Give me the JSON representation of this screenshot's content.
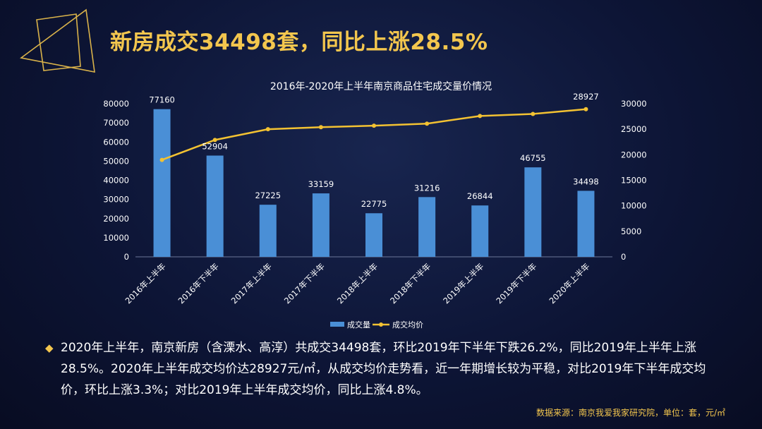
{
  "headline": "新房成交34498套，同比上涨28.5%",
  "summary": "2020年上半年，南京新房（含溧水、高淳）共成交34498套，环比2019年下半年下跌26.2%，同比2019年上半年上涨28.5%。2020年上半年成交均价达28927元/㎡，从成交均价走势看，近一年期增长较为平稳，对比2019年下半年成交均价，环比上涨3.3%；对比2019年上半年成交均价，同比上涨4.8%。",
  "source": "数据来源：南京我爱我家研究院，单位：套，元/㎡",
  "colors": {
    "bar": "#4a8fd6",
    "line": "#f3c232",
    "accent": "#f3c64e"
  },
  "chart_data": {
    "type": "bar",
    "title": "2016年-2020年上半年南京商品住宅成交量价情况",
    "categories": [
      "2016年上半年",
      "2016年下半年",
      "2017年上半年",
      "2017年下半年",
      "2018年上半年",
      "2018年下半年",
      "2019年上半年",
      "2019年下半年",
      "2020年上半年"
    ],
    "series": [
      {
        "name": "成交量",
        "type": "bar",
        "axis": "left",
        "values": [
          77160,
          52904,
          27225,
          33159,
          22775,
          31216,
          26844,
          46755,
          34498
        ],
        "data_labels": [
          "77160",
          "52904",
          "27225",
          "33159",
          "22775",
          "31216",
          "26844",
          "46755",
          "34498"
        ]
      },
      {
        "name": "成交均价",
        "type": "line",
        "axis": "right",
        "values": [
          19000,
          22900,
          25000,
          25400,
          25700,
          26100,
          27600,
          28000,
          28927
        ],
        "labeled_point": {
          "index": 8,
          "label": "28927"
        }
      }
    ],
    "y_left": {
      "min": 0,
      "max": 80000,
      "ticks": [
        "0",
        "10000",
        "20000",
        "30000",
        "40000",
        "50000",
        "60000",
        "70000",
        "80000"
      ]
    },
    "y_right": {
      "min": 0,
      "max": 30000,
      "ticks": [
        "0",
        "5000",
        "10000",
        "15000",
        "20000",
        "25000",
        "30000"
      ]
    },
    "legend_position": "bottom",
    "grid": false
  }
}
